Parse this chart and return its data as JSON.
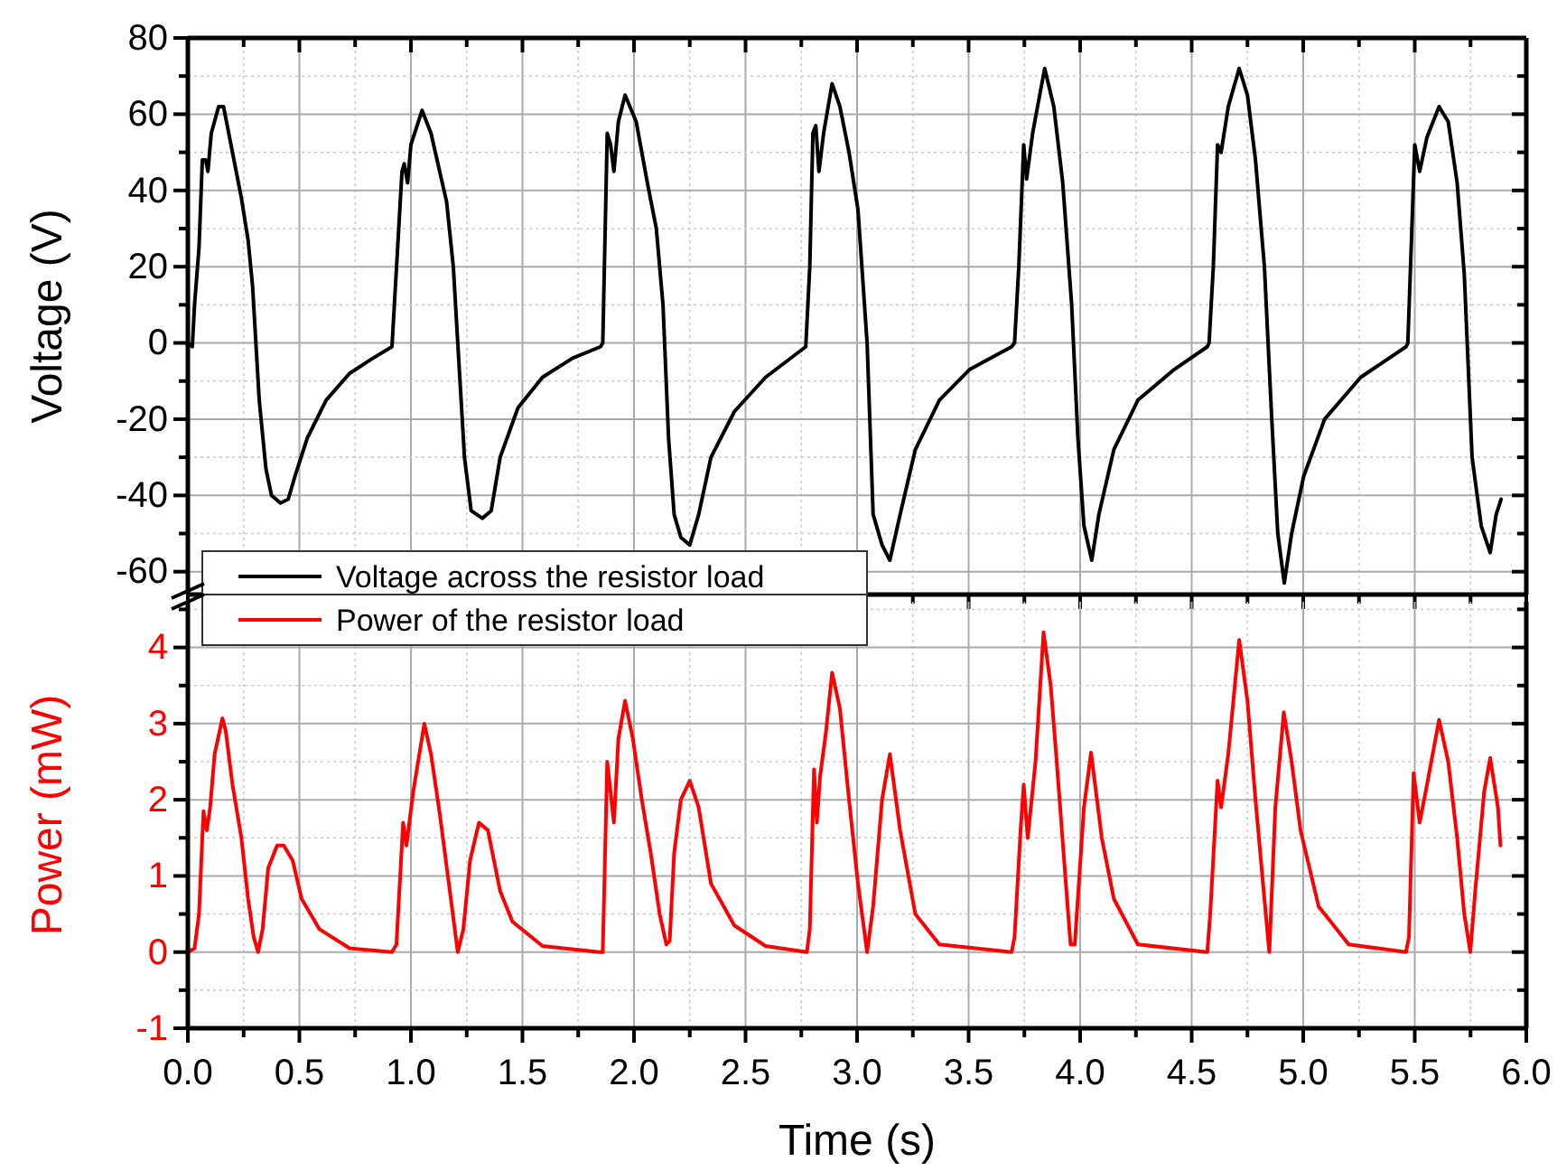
{
  "chart_data": [
    {
      "type": "line",
      "ylabel": "Voltage (V)",
      "xlim": [
        0,
        6
      ],
      "ylim": [
        -66,
        80
      ],
      "xticks": [
        0,
        0.5,
        1,
        1.5,
        2,
        2.5,
        3,
        3.5,
        4,
        4.5,
        5,
        5.5,
        6
      ],
      "yticks": [
        -60,
        -40,
        -20,
        0,
        20,
        40,
        60,
        80
      ],
      "tick_labels": "y",
      "grid": true,
      "legend": "bottom left",
      "series": [
        {
          "name": "Voltage across the resistor load",
          "color": "#000000",
          "x": [
            0,
            0.02,
            0.03,
            0.05,
            0.065,
            0.08,
            0.09,
            0.105,
            0.138,
            0.16,
            0.2,
            0.24,
            0.27,
            0.29,
            0.32,
            0.35,
            0.375,
            0.415,
            0.45,
            0.48,
            0.535,
            0.62,
            0.725,
            0.83,
            0.915,
            0.96,
            0.97,
            0.985,
            1.0,
            1.05,
            1.09,
            1.16,
            1.19,
            1.22,
            1.24,
            1.27,
            1.32,
            1.36,
            1.4,
            1.48,
            1.59,
            1.725,
            1.85,
            1.86,
            1.88,
            1.895,
            1.91,
            1.93,
            1.96,
            2.01,
            2.06,
            2.1,
            2.13,
            2.155,
            2.18,
            2.21,
            2.25,
            2.29,
            2.345,
            2.45,
            2.59,
            2.77,
            2.788,
            2.802,
            2.815,
            2.829,
            2.85,
            2.888,
            2.923,
            2.964,
            3.004,
            3.045,
            3.072,
            3.112,
            3.147,
            3.193,
            3.261,
            3.369,
            3.504,
            3.693,
            3.706,
            3.725,
            3.747,
            3.76,
            3.787,
            3.841,
            3.882,
            3.922,
            3.962,
            3.99,
            4.017,
            4.052,
            4.084,
            4.151,
            4.259,
            4.421,
            4.57,
            4.578,
            4.597,
            4.616,
            4.632,
            4.664,
            4.713,
            4.75,
            4.786,
            4.826,
            4.859,
            4.886,
            4.915,
            4.948,
            5.002,
            5.096,
            5.258,
            5.461,
            5.469,
            5.487,
            5.5,
            5.522,
            5.555,
            5.609,
            5.65,
            5.69,
            5.722,
            5.757,
            5.798,
            5.838,
            5.865,
            5.887
          ],
          "values": [
            0,
            -1,
            10,
            25,
            48,
            48,
            45,
            55,
            62,
            62,
            50,
            38,
            27,
            15,
            -15,
            -33,
            -40,
            -42,
            -41,
            -35,
            -25,
            -15,
            -8,
            -4,
            -1,
            45,
            47,
            42,
            52,
            61,
            55,
            37,
            20,
            -10,
            -30,
            -44,
            -46,
            -44,
            -30,
            -17,
            -9,
            -4,
            -1,
            0,
            55,
            52,
            45,
            58,
            65,
            58,
            42,
            30,
            10,
            -25,
            -45,
            -51,
            -53,
            -45,
            -30,
            -18,
            -9,
            -1,
            20,
            55,
            57,
            45,
            55,
            68,
            62,
            50,
            35,
            0,
            -45,
            -53,
            -57,
            -45,
            -28,
            -15,
            -7,
            -1,
            0,
            20,
            52,
            43,
            55,
            72,
            62,
            42,
            10,
            -25,
            -48,
            -57,
            -45,
            -28,
            -15,
            -7,
            -1,
            0,
            20,
            52,
            50,
            62,
            72,
            65,
            48,
            20,
            -20,
            -50,
            -63,
            -50,
            -35,
            -20,
            -9,
            -1,
            0,
            30,
            52,
            45,
            54,
            62,
            58,
            42,
            18,
            -30,
            -48,
            -55,
            -45,
            -41
          ]
        }
      ]
    },
    {
      "type": "line",
      "xlabel": "Time (s)",
      "ylabel": "Power (mW)",
      "xlim": [
        0,
        6
      ],
      "ylim": [
        -1,
        4.6
      ],
      "xticks": [
        {
          "value": 0,
          "label": "0.0"
        },
        {
          "value": 0.5,
          "label": "0.5"
        },
        {
          "value": 1,
          "label": "1.0"
        },
        {
          "value": 1.5,
          "label": "1.5"
        },
        {
          "value": 2,
          "label": "2.0"
        },
        {
          "value": 2.5,
          "label": "2.5"
        },
        {
          "value": 3,
          "label": "3.0"
        },
        {
          "value": 3.5,
          "label": "3.5"
        },
        {
          "value": 4,
          "label": "4.0"
        },
        {
          "value": 4.5,
          "label": "4.5"
        },
        {
          "value": 5,
          "label": "5.0"
        },
        {
          "value": 5.5,
          "label": "5.5"
        },
        {
          "value": 6,
          "label": "6.0"
        }
      ],
      "yticks": [
        -1,
        0,
        1,
        2,
        3,
        4
      ],
      "grid": true,
      "legend": "top left",
      "series": [
        {
          "name": "Power of the resistor load",
          "color": "#ff0000",
          "x": [
            0,
            0.03,
            0.05,
            0.07,
            0.085,
            0.1,
            0.12,
            0.155,
            0.17,
            0.2,
            0.24,
            0.27,
            0.295,
            0.315,
            0.335,
            0.36,
            0.4,
            0.43,
            0.47,
            0.51,
            0.59,
            0.725,
            0.915,
            0.935,
            0.965,
            0.98,
            1.01,
            1.06,
            1.09,
            1.13,
            1.17,
            1.21,
            1.235,
            1.265,
            1.305,
            1.345,
            1.4,
            1.455,
            1.59,
            1.845,
            1.86,
            1.88,
            1.91,
            1.93,
            1.96,
            1.995,
            2.035,
            2.075,
            2.115,
            2.145,
            2.16,
            2.18,
            2.21,
            2.25,
            2.29,
            2.345,
            2.45,
            2.59,
            2.775,
            2.788,
            2.807,
            2.82,
            2.834,
            2.861,
            2.888,
            2.923,
            2.964,
            3.004,
            3.045,
            3.072,
            3.112,
            3.147,
            3.193,
            3.261,
            3.369,
            3.693,
            3.706,
            3.733,
            3.747,
            3.765,
            3.8,
            3.836,
            3.868,
            3.895,
            3.936,
            3.957,
            3.976,
            4.017,
            4.049,
            4.097,
            4.151,
            4.259,
            4.57,
            4.583,
            4.616,
            4.632,
            4.664,
            4.713,
            4.75,
            4.786,
            4.826,
            4.848,
            4.875,
            4.913,
            4.948,
            4.988,
            5.069,
            5.204,
            5.461,
            5.474,
            5.495,
            5.522,
            5.555,
            5.609,
            5.65,
            5.69,
            5.722,
            5.749,
            5.771,
            5.811,
            5.838,
            5.873,
            5.884
          ],
          "values": [
            0,
            0.05,
            0.5,
            1.85,
            1.6,
            1.9,
            2.6,
            3.07,
            2.9,
            2.2,
            1.5,
            0.7,
            0.2,
            0,
            0.3,
            1.1,
            1.4,
            1.4,
            1.2,
            0.7,
            0.3,
            0.05,
            0,
            0.1,
            1.7,
            1.4,
            2.1,
            3.0,
            2.6,
            1.8,
            0.9,
            0,
            0.3,
            1.2,
            1.7,
            1.6,
            0.8,
            0.4,
            0.08,
            0,
            0,
            2.5,
            1.7,
            2.8,
            3.3,
            2.8,
            2.0,
            1.3,
            0.5,
            0.1,
            0.15,
            1.3,
            2.0,
            2.25,
            1.9,
            0.9,
            0.35,
            0.08,
            0,
            0.3,
            2.4,
            1.7,
            2.3,
            2.9,
            3.67,
            3.2,
            2.0,
            0.9,
            0,
            0.6,
            2.0,
            2.6,
            1.6,
            0.5,
            0.1,
            0,
            0.2,
            1.6,
            2.2,
            1.5,
            2.5,
            4.2,
            3.5,
            2.5,
            0.9,
            0.1,
            0.1,
            1.9,
            2.62,
            1.5,
            0.7,
            0.1,
            0,
            0.5,
            2.25,
            1.9,
            2.6,
            4.1,
            3.3,
            2.0,
            0.7,
            0,
            1.9,
            3.15,
            2.5,
            1.6,
            0.6,
            0.1,
            0,
            0.2,
            2.35,
            1.7,
            2.2,
            3.05,
            2.5,
            1.5,
            0.5,
            0,
            0.8,
            2.1,
            2.55,
            1.9,
            1.4
          ]
        }
      ]
    }
  ]
}
